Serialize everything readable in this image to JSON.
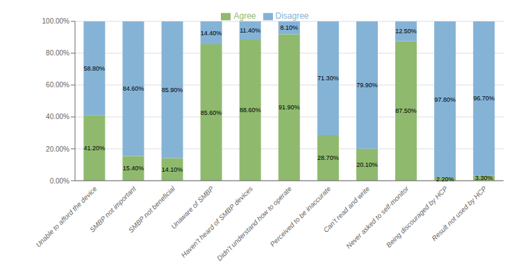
{
  "chart_data": {
    "type": "bar",
    "stacked": true,
    "categories": [
      "Unable to afford the device",
      "SMBP not important",
      "SMBP not beneficial",
      "Unaware of SMBP",
      "Haven’t heard of SMBP devices",
      "Didn’t understand how to operate",
      "Perceived to be inaccurate",
      "Can’t read and write",
      "Never asked to self-monitor",
      "Being discouraged by HCP",
      "Result not used by HCP"
    ],
    "series": [
      {
        "name": "Agree",
        "color": "#8fba6e",
        "values": [
          41.2,
          15.4,
          14.1,
          85.6,
          88.6,
          91.9,
          28.7,
          20.1,
          87.5,
          2.2,
          3.3
        ],
        "value_labels": [
          "41.20%",
          "15.40%",
          "14.10%",
          "85.60%",
          "88.60%",
          "91.90%",
          "28.70%",
          "20.10%",
          "87.50%",
          "2.20%",
          "3.30%"
        ]
      },
      {
        "name": "Disagree",
        "color": "#85b3d6",
        "values": [
          58.8,
          84.6,
          85.9,
          14.4,
          11.4,
          8.1,
          71.3,
          79.9,
          12.5,
          97.8,
          96.7
        ],
        "value_labels": [
          "58.80%",
          "84.60%",
          "85.90%",
          "14.40%",
          "11.40%",
          "8.10%",
          "71.30%",
          "79.90%",
          "12.50%",
          "97.80%",
          "96.70%"
        ]
      }
    ],
    "ylim": [
      0,
      100
    ],
    "yticks": [
      {
        "value": 0,
        "label": "0.00%"
      },
      {
        "value": 20,
        "label": "20.00%"
      },
      {
        "value": 40,
        "label": "40.00%"
      },
      {
        "value": 60,
        "label": "60.00%"
      },
      {
        "value": 80,
        "label": "80.00%"
      },
      {
        "value": 100,
        "label": "100.00%"
      }
    ],
    "grid": true,
    "legend": "top",
    "data_labels": true
  }
}
